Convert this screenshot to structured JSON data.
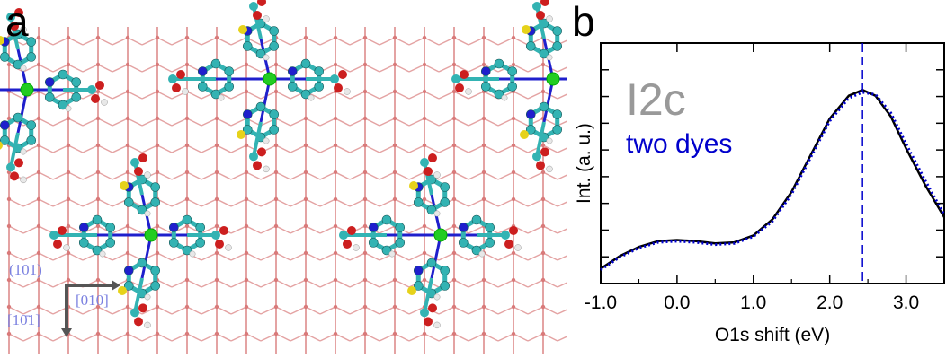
{
  "panel_a": {
    "letter": "a",
    "labels": {
      "plane": "(101)",
      "dir_right": "[010]",
      "dir_down": "[10̄1]"
    },
    "colors": {
      "lattice": "#e4a3a3",
      "oxygen": "#cc1f1f",
      "carbon": "#33b3b3",
      "nitrogen": "#1f1fcc",
      "hydrogen": "#e8e8e8",
      "sulfur": "#e6d21a",
      "ruthenium": "#22cc22",
      "label_blue": "#7a80e0"
    }
  },
  "panel_b": {
    "letter": "b",
    "label_large": "I2c",
    "label_series": "two dyes",
    "colors": {
      "label_large": "#999999",
      "label_series": "#0000cc"
    }
  },
  "chart_data": {
    "type": "line",
    "xlabel": "O1s shift (eV)",
    "ylabel": "Int. (a. u.)",
    "xlim": [
      -1.0,
      3.5
    ],
    "ylim": [
      0,
      1.05
    ],
    "xticks": [
      -1.0,
      0.0,
      1.0,
      2.0,
      3.0
    ],
    "xtick_labels": [
      "-1.0",
      "0.0",
      "1.0",
      "2.0",
      "3.0"
    ],
    "yticks_count": 9,
    "vline": {
      "x": 2.43,
      "style": "dashed",
      "color": "#0000cc"
    },
    "series": [
      {
        "style": "solid",
        "color": "#000000",
        "x": [
          -1.0,
          -0.75,
          -0.5,
          -0.25,
          0.0,
          0.25,
          0.5,
          0.75,
          1.0,
          1.25,
          1.5,
          1.75,
          2.0,
          2.25,
          2.43,
          2.6,
          2.8,
          3.0,
          3.25,
          3.5
        ],
        "y": [
          0.065,
          0.12,
          0.16,
          0.185,
          0.19,
          0.185,
          0.175,
          0.18,
          0.21,
          0.28,
          0.4,
          0.56,
          0.72,
          0.82,
          0.845,
          0.82,
          0.73,
          0.59,
          0.43,
          0.29
        ]
      },
      {
        "style": "dotted",
        "color": "#0000cc",
        "x": [
          -1.0,
          -0.75,
          -0.5,
          -0.25,
          0.0,
          0.25,
          0.5,
          0.75,
          1.0,
          1.25,
          1.5,
          1.75,
          2.0,
          2.25,
          2.43,
          2.6,
          2.8,
          3.0,
          3.25,
          3.5
        ],
        "y": [
          0.06,
          0.115,
          0.155,
          0.18,
          0.185,
          0.18,
          0.17,
          0.175,
          0.205,
          0.272,
          0.39,
          0.55,
          0.71,
          0.81,
          0.835,
          0.825,
          0.745,
          0.61,
          0.45,
          0.3
        ]
      }
    ]
  }
}
